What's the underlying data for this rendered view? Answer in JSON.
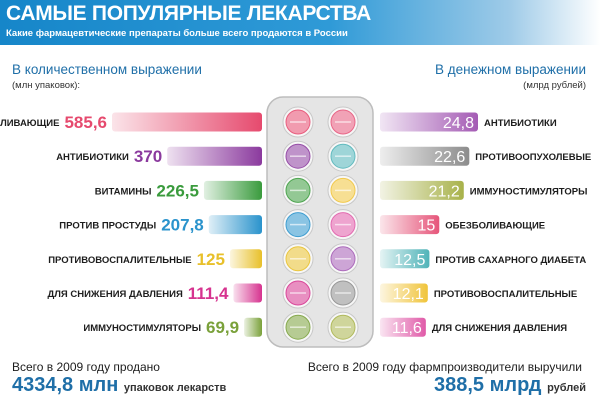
{
  "header": {
    "title": "САМЫЕ ПОПУЛЯРНЫЕ ЛЕКАРСТВА",
    "subtitle": "Какие фармацевтические препараты больше всего продаются в России"
  },
  "chart_data": [
    {
      "type": "bar",
      "title": "В количественном выражении",
      "unit": "(млн упаковок):",
      "categories": [
        "ОБЕЗБОЛИВАЮЩИЕ",
        "АНТИБИОТИКИ",
        "ВИТАМИНЫ",
        "ПРОТИВ ПРОСТУДЫ",
        "ПРОТИВОВОСПАЛИТЕЛЬНЫЕ",
        "ДЛЯ СНИЖЕНИЯ ДАВЛЕНИЯ",
        "ИММУНОСТИМУЛЯТОРЫ"
      ],
      "values": [
        585.6,
        370,
        226.5,
        207.8,
        125,
        111.4,
        69.9
      ],
      "value_labels": [
        "585,6",
        "370",
        "226,5",
        "207,8",
        "125",
        "111,4",
        "69,9"
      ],
      "colors": [
        "#e64a6e",
        "#8b3a9e",
        "#3a9b3d",
        "#2a93cc",
        "#e8c02a",
        "#d6338f",
        "#7aa13a"
      ]
    },
    {
      "type": "bar",
      "title": "В денежном выражении",
      "unit": "(млрд рублей)",
      "categories": [
        "АНТИБИОТИКИ",
        "ПРОТИВООПУХОЛЕВЫЕ",
        "ИММУНОСТИМУЛЯТОРЫ",
        "ОБЕЗБОЛИВАЮЩИЕ",
        "ПРОТИВ САХАРНОГО ДИАБЕТА",
        "ПРОТИВОВОСПАЛИТЕЛЬНЫЕ",
        "ДЛЯ СНИЖЕНИЯ ДАВЛЕНИЯ"
      ],
      "values": [
        24.8,
        22.6,
        21.2,
        15,
        12.5,
        12.1,
        11.6
      ],
      "value_labels": [
        "24,8",
        "22,6",
        "21,2",
        "15",
        "12,5",
        "12,1",
        "11,6"
      ],
      "colors": [
        "#a45bb4",
        "#8c8c8c",
        "#a8b24a",
        "#e6557a",
        "#4fb3b8",
        "#f0c43a",
        "#e05aa8"
      ]
    }
  ],
  "footer": {
    "left_text": "Всего в 2009 году продано",
    "left_value": "4334,8",
    "left_unit": "млн",
    "left_suffix": "упаковок лекарств",
    "right_text": "Всего в 2009 году фармпроизводители выручили",
    "right_value": "388,5",
    "right_unit": "млрд",
    "right_suffix": "рублей"
  }
}
